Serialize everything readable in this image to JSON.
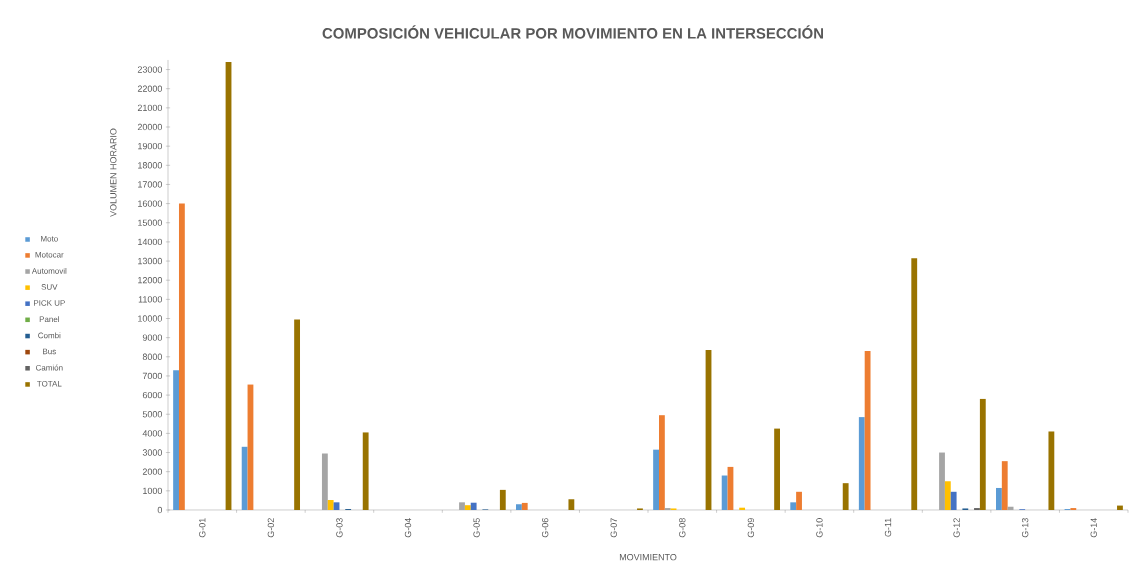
{
  "chart_data": {
    "type": "bar",
    "title": "COMPOSICIÓN VEHICULAR POR MOVIMIENTO EN LA INTERSECCIÓN",
    "xlabel": "MOVIMIENTO",
    "ylabel": "VOLUMEN HORARIO",
    "categories": [
      "G-01",
      "G-02",
      "G-03",
      "G-04",
      "G-05",
      "G-06",
      "G-07",
      "G-08",
      "G-09",
      "G-10",
      "G-11",
      "G-12",
      "G-13",
      "G-14"
    ],
    "series": [
      {
        "name": "Moto",
        "color": "#5b9bd5",
        "values": [
          7300,
          3300,
          0,
          0,
          0,
          300,
          0,
          3150,
          1800,
          400,
          4850,
          0,
          1150,
          50
        ]
      },
      {
        "name": "Motocar",
        "color": "#ed7d31",
        "values": [
          16000,
          6550,
          0,
          0,
          0,
          370,
          0,
          4950,
          2250,
          950,
          8300,
          0,
          2550,
          100
        ]
      },
      {
        "name": "Automovil",
        "color": "#a5a5a5",
        "values": [
          0,
          0,
          2950,
          0,
          400,
          0,
          null,
          100,
          null,
          0,
          0,
          3000,
          170,
          0
        ]
      },
      {
        "name": "SUV",
        "color": "#ffc000",
        "values": [
          0,
          0,
          520,
          0,
          250,
          0,
          0,
          80,
          120,
          0,
          0,
          1500,
          0,
          0
        ]
      },
      {
        "name": "PICK UP",
        "color": "#4472c4",
        "values": [
          0,
          0,
          400,
          0,
          380,
          0,
          0,
          0,
          0,
          0,
          0,
          950,
          40,
          0
        ]
      },
      {
        "name": "Panel",
        "color": "#70ad47",
        "values": [
          0,
          0,
          0,
          0,
          0,
          0,
          0,
          0,
          0,
          0,
          0,
          0,
          0,
          0
        ]
      },
      {
        "name": "Combi",
        "color": "#255e91",
        "values": [
          0,
          0,
          50,
          0,
          30,
          0,
          0,
          0,
          0,
          0,
          0,
          80,
          0,
          0
        ]
      },
      {
        "name": "Bus",
        "color": "#9e480e",
        "values": [
          0,
          0,
          0,
          0,
          0,
          0,
          0,
          0,
          0,
          0,
          0,
          0,
          0,
          0
        ]
      },
      {
        "name": "Camión",
        "color": "#636363",
        "values": [
          0,
          0,
          0,
          0,
          0,
          0,
          0,
          0,
          0,
          0,
          0,
          100,
          null,
          0
        ]
      },
      {
        "name": "TOTAL",
        "color": "#997300",
        "values": [
          23400,
          9950,
          4050,
          0,
          1050,
          560,
          80,
          8350,
          4250,
          1400,
          13150,
          5800,
          4100,
          230
        ]
      }
    ],
    "ylim": [
      0,
      23500
    ],
    "yticks": [
      0,
      1000,
      2000,
      3000,
      4000,
      5000,
      6000,
      7000,
      8000,
      9000,
      10000,
      11000,
      12000,
      13000,
      14000,
      15000,
      16000,
      17000,
      18000,
      19000,
      20000,
      21000,
      22000,
      23000
    ],
    "grid": false,
    "legend": "left"
  }
}
